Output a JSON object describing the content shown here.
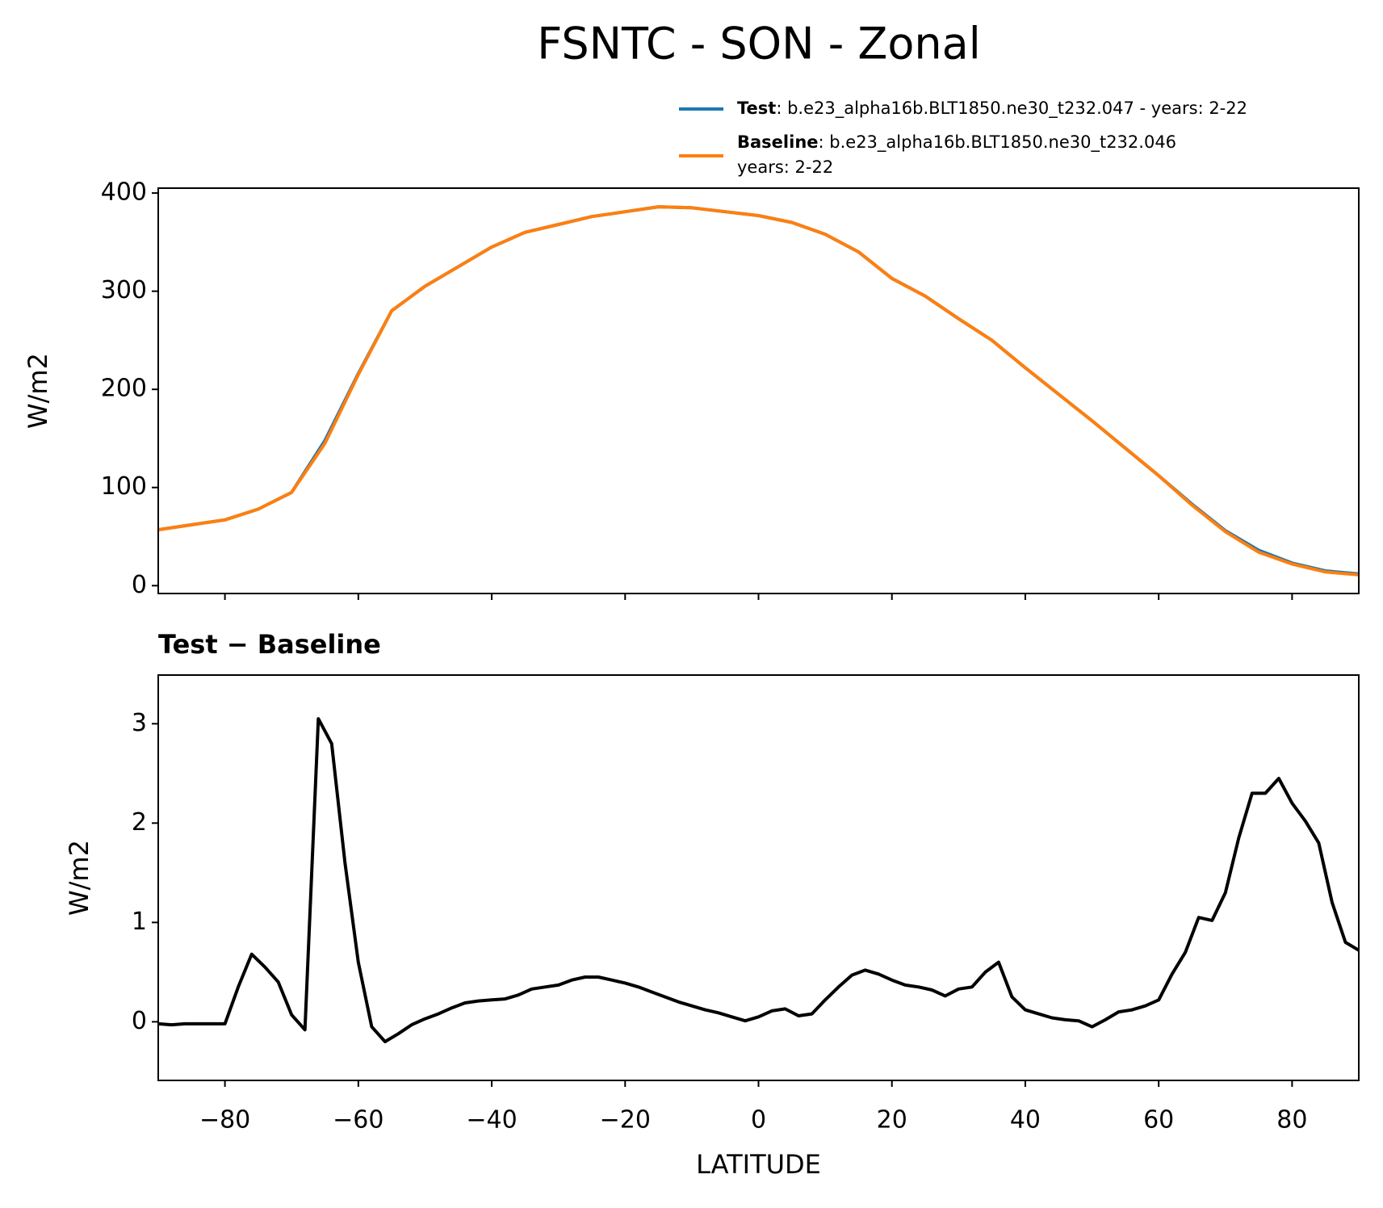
{
  "title": "FSNTC - SON - Zonal",
  "chart_data": [
    {
      "type": "line",
      "ylabel": "W/m2",
      "x": [
        -90,
        -85,
        -80,
        -75,
        -70,
        -65,
        -60,
        -55,
        -50,
        -45,
        -40,
        -35,
        -30,
        -25,
        -20,
        -15,
        -10,
        -5,
        0,
        5,
        10,
        15,
        20,
        25,
        30,
        35,
        40,
        45,
        50,
        55,
        60,
        65,
        70,
        75,
        80,
        85,
        90
      ],
      "series": [
        {
          "name": "Test",
          "description": [
            ": b.e23_alpha16b.BLT1850.ne30_t232.047 - years: 2-22"
          ],
          "color": "#1f77b4",
          "values": [
            57,
            62,
            67,
            78,
            95,
            148,
            216,
            280,
            305,
            325,
            345,
            360,
            368,
            376,
            381,
            386,
            385,
            381,
            377,
            370,
            358,
            340,
            313,
            295,
            272,
            250,
            222,
            195,
            168,
            140,
            112,
            83,
            56,
            36,
            23,
            15,
            12
          ]
        },
        {
          "name": "Baseline",
          "description": [
            ": b.e23_alpha16b.BLT1850.ne30_t232.046",
            "years: 2-22"
          ],
          "color": "#ff7f0e",
          "values": [
            57,
            62,
            67,
            78,
            95,
            145,
            215,
            280,
            305,
            325,
            345,
            360,
            368,
            376,
            381,
            386,
            385,
            381,
            377,
            370,
            358,
            340,
            313,
            295,
            272,
            250,
            222,
            195,
            168,
            140,
            112,
            82,
            55,
            34,
            22,
            14,
            11
          ]
        }
      ],
      "xlim": [
        -90,
        90
      ],
      "xticks": [
        -80,
        -60,
        -40,
        -20,
        0,
        20,
        40,
        60,
        80
      ],
      "ylim": [
        -8,
        405
      ],
      "yticks": [
        0,
        100,
        200,
        300,
        400
      ]
    },
    {
      "type": "line",
      "title": "Test − Baseline",
      "ylabel": "W/m2",
      "xlabel": "LATITUDE",
      "x": [
        -90,
        -88,
        -86,
        -84,
        -82,
        -80,
        -78,
        -76,
        -74,
        -72,
        -70,
        -68,
        -66,
        -64,
        -62,
        -60,
        -58,
        -56,
        -54,
        -52,
        -50,
        -48,
        -46,
        -44,
        -42,
        -40,
        -38,
        -36,
        -34,
        -32,
        -30,
        -28,
        -26,
        -24,
        -22,
        -20,
        -18,
        -16,
        -14,
        -12,
        -10,
        -8,
        -6,
        -4,
        -2,
        0,
        2,
        4,
        6,
        8,
        10,
        12,
        14,
        16,
        18,
        20,
        22,
        24,
        26,
        28,
        30,
        32,
        34,
        36,
        38,
        40,
        42,
        44,
        46,
        48,
        50,
        52,
        54,
        56,
        58,
        60,
        62,
        64,
        66,
        68,
        70,
        72,
        74,
        76,
        78,
        80,
        82,
        84,
        86,
        88,
        90
      ],
      "series": [
        {
          "name": "Test − Baseline",
          "color": "#000000",
          "values": [
            -0.02,
            -0.03,
            -0.02,
            -0.02,
            -0.02,
            -0.02,
            0.35,
            0.68,
            0.55,
            0.4,
            0.07,
            -0.08,
            3.05,
            2.8,
            1.6,
            0.6,
            -0.05,
            -0.2,
            -0.12,
            -0.03,
            0.03,
            0.08,
            0.14,
            0.19,
            0.21,
            0.22,
            0.23,
            0.27,
            0.33,
            0.35,
            0.37,
            0.42,
            0.45,
            0.45,
            0.42,
            0.39,
            0.35,
            0.3,
            0.25,
            0.2,
            0.16,
            0.12,
            0.09,
            0.05,
            0.01,
            0.05,
            0.11,
            0.13,
            0.06,
            0.08,
            0.22,
            0.35,
            0.47,
            0.52,
            0.48,
            0.42,
            0.37,
            0.35,
            0.32,
            0.26,
            0.33,
            0.35,
            0.5,
            0.6,
            0.25,
            0.12,
            0.08,
            0.04,
            0.02,
            0.01,
            -0.05,
            0.02,
            0.1,
            0.12,
            0.16,
            0.22,
            0.48,
            0.7,
            1.05,
            1.02,
            1.3,
            1.85,
            2.3,
            2.3,
            2.45,
            2.2,
            2.02,
            1.8,
            1.2,
            0.8,
            0.72
          ]
        }
      ],
      "xlim": [
        -90,
        90
      ],
      "xticks": [
        {
          "value": -80,
          "label": "−80"
        },
        {
          "value": -60,
          "label": "−60"
        },
        {
          "value": -40,
          "label": "−40"
        },
        {
          "value": -20,
          "label": "−20"
        },
        0,
        20,
        40,
        60,
        80
      ],
      "ylim": [
        -0.59,
        3.49
      ],
      "yticks": [
        0,
        1,
        2,
        3
      ]
    }
  ]
}
